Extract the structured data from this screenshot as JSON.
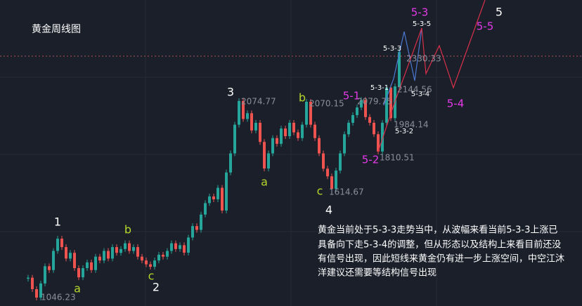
{
  "chart_data": {
    "type": "candlestick",
    "title": "黄金周线图",
    "values": [
      1150,
      1090,
      1046,
      1120,
      1210,
      1190,
      1290,
      1354,
      1310,
      1250,
      1280,
      1200,
      1152,
      1200,
      1230,
      1190,
      1260,
      1240,
      1290,
      1250,
      1310,
      1280,
      1300,
      1330,
      1290,
      1310,
      1260,
      1240,
      1220,
      1207,
      1240,
      1270,
      1260,
      1290,
      1330,
      1300,
      1320,
      1281,
      1360,
      1420,
      1400,
      1480,
      1540,
      1575,
      1560,
      1620,
      1501,
      1700,
      1800,
      1950,
      2074,
      1980,
      2010,
      1920,
      1960,
      1860,
      1721,
      1800,
      1880,
      1850,
      1930,
      1890,
      1960,
      1910,
      1880,
      1950,
      2070,
      1950,
      1880,
      1800,
      1720,
      1680,
      1614,
      1710,
      1800,
      1900,
      1960,
      2000,
      2040,
      2079,
      1990,
      1960,
      1900,
      1810,
      1960,
      2144,
      1984,
      2150,
      2330
    ],
    "up_color": "#26a69a",
    "down_color": "#ef5350",
    "ylim": [
      1002,
      2602
    ],
    "wave_labels": [
      "1",
      "a",
      "b",
      "c",
      "2",
      "3",
      "a",
      "b",
      "c",
      "4",
      "5-1",
      "5-2",
      "5-3-1",
      "5-3-2",
      "5-3-3",
      "5-3-4",
      "5-3-5",
      "5-3",
      "5-4",
      "5-5",
      "5"
    ],
    "price_labels": [
      2074.77,
      2070.15,
      2079.75,
      2144.56,
      2330.33,
      1984.14,
      1810.51,
      1614.67,
      1046.23
    ],
    "commentary": [
      "黄金当前处于5-3-3走势当中，从波幅来看当前5-3-3上涨已",
      "具备向下走5-3-4的调整，但从形态以及结构上来看目前还没",
      "有信号出现，因此短线来黄金仍有进一步上涨空间，中空江沐",
      "洋建议还需要等结构信号出现"
    ]
  }
}
